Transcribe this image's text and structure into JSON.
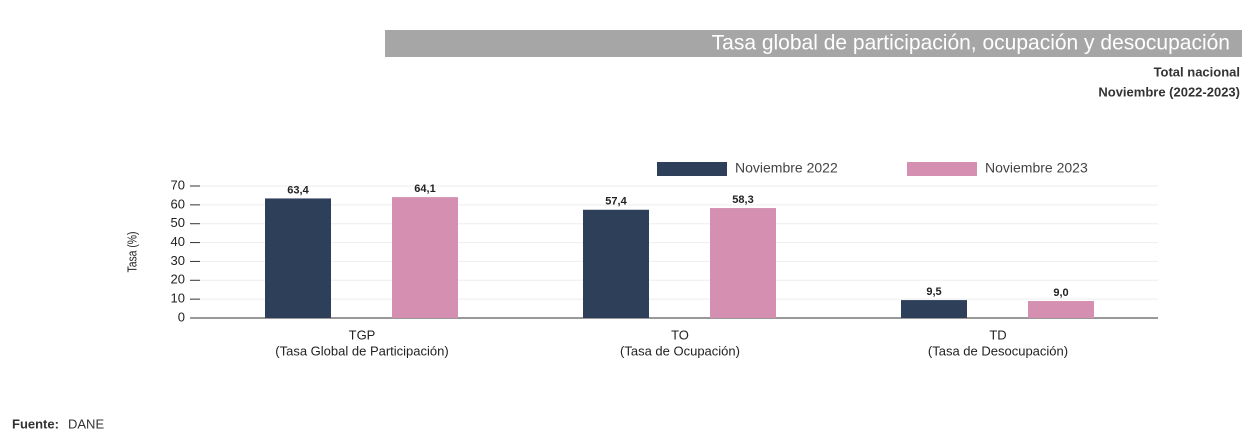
{
  "chart_data": {
    "type": "bar",
    "title": "Tasa global de participación, ocupación y desocupación",
    "subtitle": [
      "Total nacional",
      "Noviembre (2022-2023)"
    ],
    "y_label": "Tasa (%)",
    "categories": [
      [
        "TGP",
        "(Tasa Global de Participación)"
      ],
      [
        "TO",
        "(Tasa de Ocupación)"
      ],
      [
        "TD",
        "(Tasa de Desocupación)"
      ]
    ],
    "series": [
      {
        "name": "Noviembre 2022",
        "color": "#2e3f5a",
        "values": [
          63.4,
          57.4,
          9.5
        ],
        "value_labels": [
          "63,4",
          "57,4",
          "9,5"
        ]
      },
      {
        "name": "Noviembre 2023",
        "color": "#d48fb1",
        "values": [
          64.1,
          58.3,
          9.0
        ],
        "value_labels": [
          "64,1",
          "58,3",
          "9,0"
        ]
      }
    ],
    "ylim": [
      0,
      70
    ],
    "yticks": [
      0,
      10,
      20,
      30,
      40,
      50,
      60,
      70
    ],
    "grid": true,
    "legend": "top",
    "source": {
      "label": "Fuente:",
      "text": "DANE"
    }
  }
}
